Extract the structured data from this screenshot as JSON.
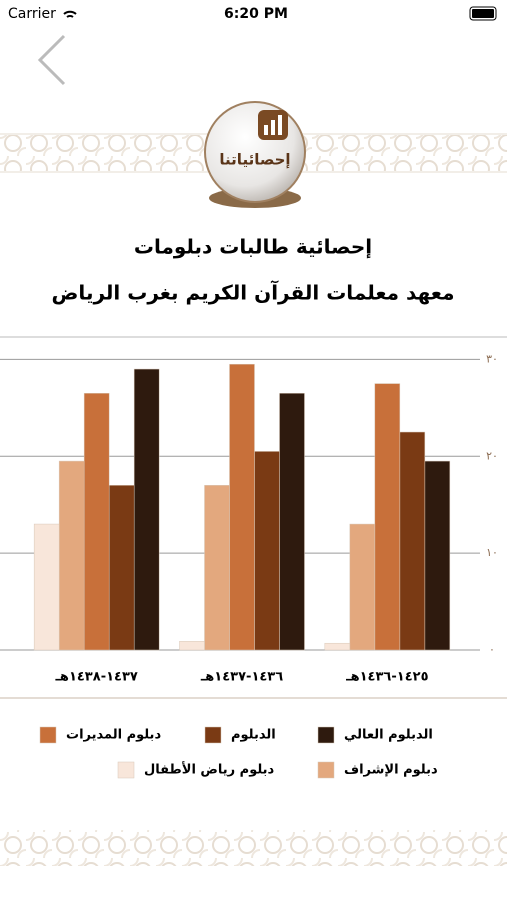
{
  "status_bar": {
    "carrier": "Carrier",
    "time": "6:20 PM"
  },
  "header": {
    "emblem_label": "إحصائياتنا",
    "title_line_1": "إحصائية طالبات دبلومات",
    "title_line_2": "معهد معلمات القرآن الكريم بغرب الرياض"
  },
  "chart_data": {
    "type": "bar",
    "categories": [
      "١٤٢٥-١٤٣٦هـ",
      "١٤٣٦-١٤٣٧هـ",
      "١٤٣٧-١٤٣٨هـ"
    ],
    "series": [
      {
        "name": "الدبلوم العالي",
        "color": "#2e1a0e",
        "values": [
          19.5,
          26.5,
          29
        ]
      },
      {
        "name": "الدبلوم",
        "color": "#7a3a14",
        "values": [
          22.5,
          20.5,
          17
        ]
      },
      {
        "name": "دبلوم المديرات",
        "color": "#c8703a",
        "values": [
          27.5,
          29.5,
          26.5
        ]
      },
      {
        "name": "دبلوم الإشراف",
        "color": "#e3a87e",
        "values": [
          13,
          17,
          19.5
        ]
      },
      {
        "name": "دبلوم رياض الأطفال",
        "color": "#f8e6da",
        "values": [
          0.7,
          0.9,
          13
        ]
      }
    ],
    "ylim": [
      0,
      32
    ],
    "yticks": [
      {
        "value": 0,
        "label": "٠"
      },
      {
        "value": 10,
        "label": "١٠"
      },
      {
        "value": 20,
        "label": "٢٠"
      },
      {
        "value": 30,
        "label": "٣٠"
      }
    ],
    "grid": true
  }
}
